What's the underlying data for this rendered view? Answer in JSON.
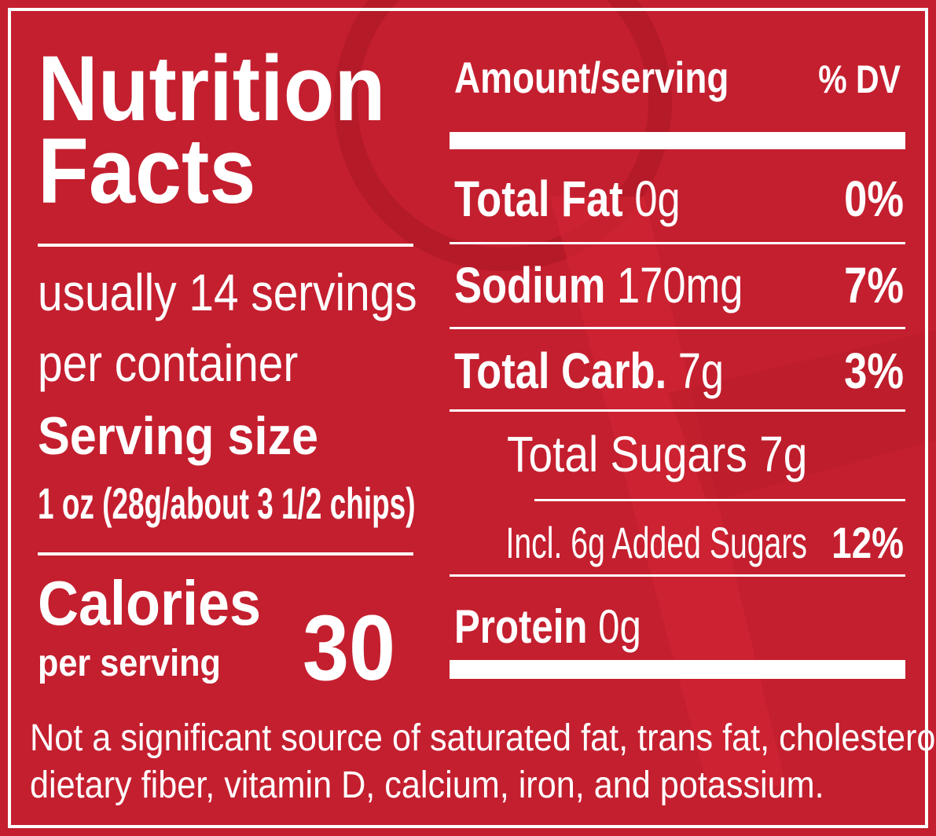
{
  "header": {
    "title_line1": "Nutrition",
    "title_line2": "Facts"
  },
  "servings": {
    "per_container_line1": "usually 14 servings",
    "per_container_line2": "per container",
    "serving_size_label": "Serving size",
    "serving_size": "1 oz (28g/about 3 1/2 chips)"
  },
  "calories": {
    "label": "Calories",
    "sublabel": "per serving",
    "value": 30
  },
  "columns": {
    "amount": "Amount/serving",
    "dv": "% DV"
  },
  "nutrients": [
    {
      "name": "Total Fat",
      "amount": "0g",
      "dv": "0%"
    },
    {
      "name": "Sodium",
      "amount": "170mg",
      "dv": "7%"
    },
    {
      "name": "Total Carb.",
      "amount": "7g",
      "dv": "3%"
    },
    {
      "name": "Total Sugars 7g"
    },
    {
      "name": "Incl. 6g Added Sugars",
      "dv": "12%"
    },
    {
      "name": "Protein",
      "amount": "0g"
    }
  ],
  "footnote": {
    "line1": "Not a significant source of saturated fat, trans fat, cholesterol,",
    "line2": "dietary fiber, vitamin D, calcium, iron, and potassium."
  }
}
